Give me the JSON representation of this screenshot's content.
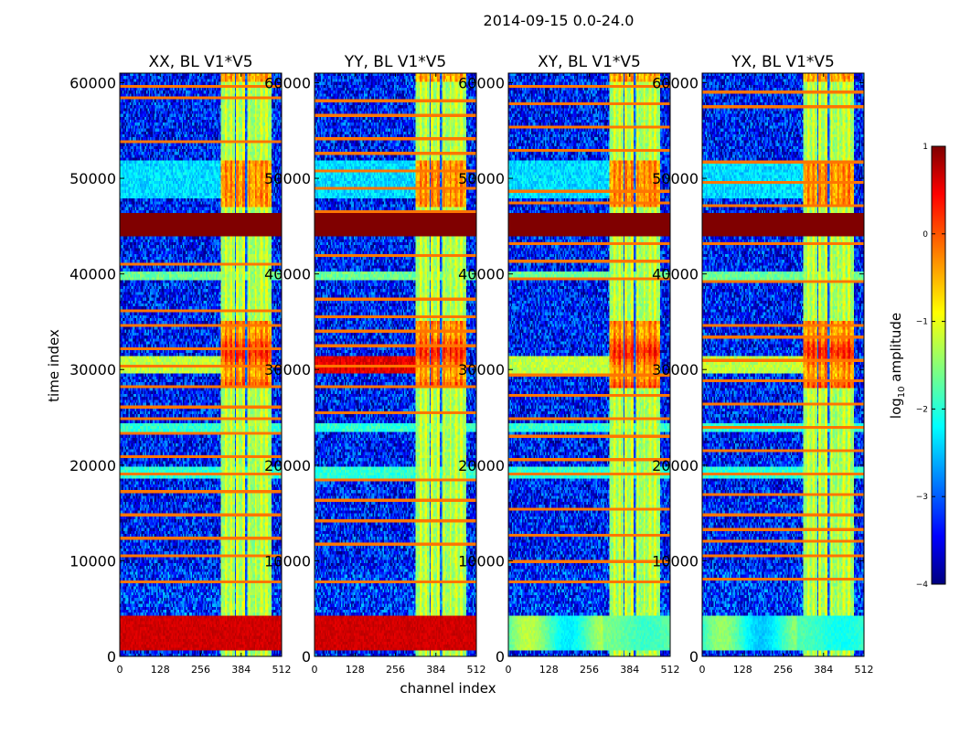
{
  "figure": {
    "suptitle": "2014-09-15 0.0-24.0"
  },
  "chart_data": {
    "type": "heatmap",
    "suptitle": "2014-09-15 0.0-24.0",
    "xlabel": "channel index",
    "ylabel": "time index",
    "xlim": [
      0,
      512
    ],
    "ylim": [
      0,
      61000
    ],
    "x_ticks": [
      0,
      128,
      256,
      384,
      512
    ],
    "x_tick_labels": [
      "0",
      "128",
      "256",
      "384",
      "512"
    ],
    "y_ticks": [
      0,
      10000,
      20000,
      30000,
      40000,
      50000,
      60000
    ],
    "y_tick_labels": [
      "0",
      "10000",
      "20000",
      "30000",
      "40000",
      "50000",
      "60000"
    ],
    "panels": [
      {
        "title": "XX, BL V1*V5",
        "bottom_block_level": 0.6
      },
      {
        "title": "YY, BL V1*V5",
        "bottom_block_level": 0.6
      },
      {
        "title": "XY, BL V1*V5",
        "bottom_block_level": -1.7
      },
      {
        "title": "YX, BL V1*V5",
        "bottom_block_level": -1.9
      }
    ],
    "saturated_band": {
      "time_start": 44000,
      "time_end": 46500,
      "level": 1
    },
    "bottom_block": {
      "time_start": 600,
      "time_end": 4200
    },
    "bright_channel_range": [
      320,
      480
    ],
    "colorbar": {
      "label": "log",
      "label_subscript": "10",
      "label_suffix": " amplitude",
      "min": -4,
      "max": 1,
      "ticks": [
        1,
        0,
        -1,
        -2,
        -3,
        -4
      ],
      "tick_labels": [
        "1",
        "0",
        "−1",
        "−2",
        "−3",
        "−4"
      ],
      "colormap": "jet"
    }
  }
}
